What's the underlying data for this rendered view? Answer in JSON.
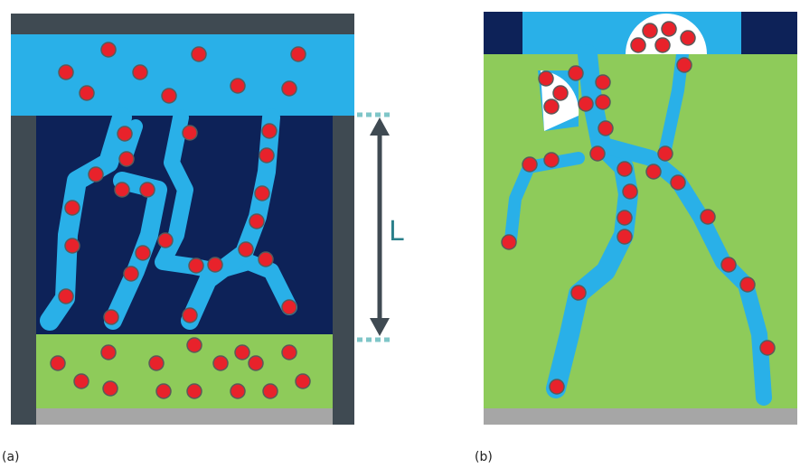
{
  "dimension_label": "L",
  "panels": [
    {
      "label": "(a)"
    },
    {
      "label": "(b)"
    }
  ]
}
